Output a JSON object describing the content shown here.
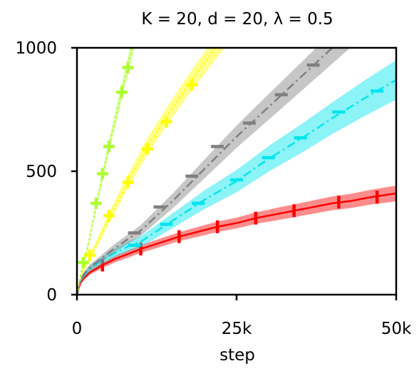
{
  "chart_data": {
    "type": "line",
    "title": "K = 20, d = 20, λ = 0.5",
    "xlabel": "step",
    "ylabel": "",
    "xlim": [
      0,
      50000
    ],
    "ylim": [
      0,
      1000
    ],
    "xticks": [
      0,
      25000,
      50000
    ],
    "xtick_labels": [
      "0",
      "25k",
      "50k"
    ],
    "yticks": [
      0,
      500,
      1000
    ],
    "ytick_labels": [
      "0",
      "500",
      "1000"
    ],
    "grid": false,
    "legend": "none",
    "series": [
      {
        "color": "#ff0000",
        "linestyle": "solid",
        "marker": "vertical-bar",
        "x": [
          0,
          500,
          1000,
          2000,
          4000,
          6000,
          8000,
          10000,
          13000,
          16000,
          19000,
          22000,
          25000,
          28000,
          31000,
          34000,
          37000,
          40000,
          43000,
          46000,
          50000
        ],
        "y": [
          0,
          45,
          65,
          90,
          120,
          145,
          165,
          185,
          210,
          235,
          255,
          275,
          290,
          310,
          325,
          340,
          355,
          370,
          380,
          395,
          410
        ],
        "band_halfwidth": [
          0,
          5,
          8,
          10,
          12,
          14,
          15,
          16,
          17,
          18,
          20,
          21,
          22,
          23,
          25,
          26,
          27,
          28,
          29,
          30,
          32
        ],
        "marker_x": [
          4000,
          10000,
          16000,
          22000,
          28000,
          34000,
          41000,
          47000
        ],
        "marker_y": [
          120,
          185,
          235,
          275,
          310,
          340,
          375,
          395
        ]
      },
      {
        "color": "#00e5ee",
        "linestyle": "dashdot",
        "marker": "horizontal-bar",
        "x": [
          0,
          500,
          1000,
          2000,
          4000,
          6000,
          8000,
          10000,
          15000,
          20000,
          25000,
          30000,
          35000,
          40000,
          45000,
          50000
        ],
        "y": [
          0,
          50,
          75,
          105,
          140,
          170,
          195,
          215,
          300,
          385,
          460,
          550,
          630,
          715,
          795,
          870
        ],
        "band_halfwidth": [
          0,
          6,
          9,
          12,
          15,
          18,
          20,
          22,
          30,
          38,
          45,
          52,
          58,
          64,
          72,
          80
        ],
        "marker_x": [
          9000,
          14000,
          19000,
          25000,
          30000,
          35000,
          41000,
          47000
        ],
        "marker_y": [
          200,
          285,
          370,
          465,
          555,
          635,
          740,
          825
        ]
      },
      {
        "color": "#808080",
        "linestyle": "dashdot",
        "marker": "horizontal-bar",
        "x": [
          0,
          500,
          1000,
          2000,
          4000,
          6000,
          8000,
          10000,
          15000,
          20000,
          25000,
          30000,
          35000,
          40000,
          45000
        ],
        "y": [
          0,
          55,
          80,
          110,
          150,
          190,
          225,
          260,
          380,
          510,
          640,
          760,
          880,
          1000,
          1120
        ],
        "band_halfwidth": [
          0,
          6,
          9,
          11,
          14,
          17,
          19,
          22,
          30,
          38,
          45,
          52,
          58,
          64,
          70
        ],
        "marker_x": [
          9000,
          13000,
          18000,
          22000,
          27000,
          32000,
          37000
        ],
        "marker_y": [
          250,
          355,
          480,
          600,
          695,
          810,
          930
        ]
      },
      {
        "color": "#ffff00",
        "linestyle": "dotted",
        "marker": "plus",
        "x": [
          0,
          500,
          1000,
          2000,
          3000,
          5000,
          8000,
          11000,
          14000,
          18000,
          22000,
          26000
        ],
        "y": [
          0,
          70,
          100,
          150,
          200,
          310,
          460,
          600,
          720,
          870,
          1010,
          1150
        ],
        "band_halfwidth": [
          0,
          8,
          10,
          14,
          17,
          22,
          28,
          33,
          37,
          42,
          48,
          54
        ],
        "marker_x": [
          2000,
          5000,
          8000,
          11000,
          14000,
          18000
        ],
        "marker_y": [
          160,
          320,
          455,
          590,
          700,
          850
        ]
      },
      {
        "color": "#adff2f",
        "linestyle": "dotted",
        "marker": "plus",
        "x": [
          0,
          500,
          1000,
          2000,
          3000,
          4000,
          5000,
          6000,
          7000,
          8000,
          9000,
          10000
        ],
        "y": [
          0,
          70,
          120,
          230,
          360,
          480,
          600,
          710,
          820,
          930,
          1040,
          1150
        ],
        "band_halfwidth": [
          0,
          6,
          8,
          12,
          16,
          20,
          24,
          28,
          32,
          36,
          40,
          44
        ],
        "marker_x": [
          1000,
          3000,
          4000,
          5000,
          7000,
          8000
        ],
        "marker_y": [
          130,
          370,
          490,
          600,
          820,
          920
        ]
      }
    ]
  }
}
